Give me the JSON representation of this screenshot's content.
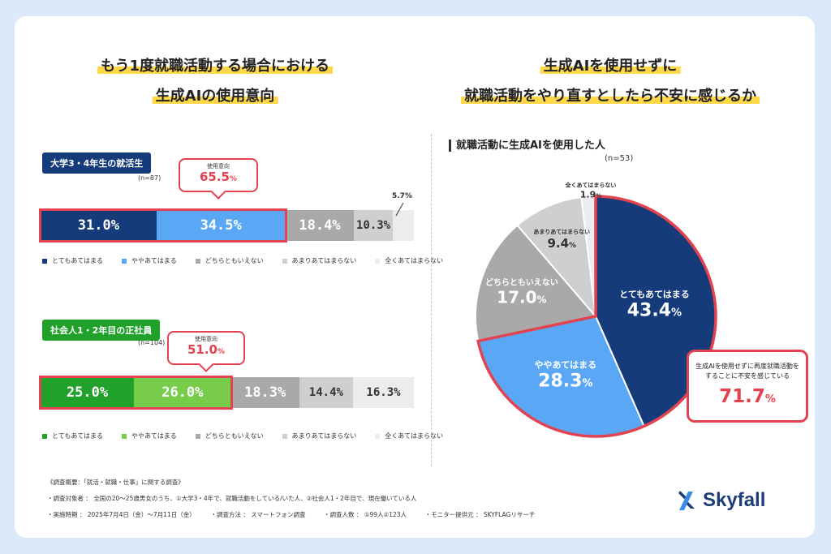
{
  "left_title": {
    "line1": "もう1度就職活動する場合における",
    "line2": "生成AIの使用意向"
  },
  "right_title": {
    "line1": "生成AIを使用せずに",
    "line2": "就職活動をやり直すとしたら不安に感じるか"
  },
  "colors": {
    "navy": "#153b7a",
    "blue": "#5aa8f5",
    "gray_mid": "#a9a9a9",
    "gray_light": "#cfcfcf",
    "gray_pale": "#ececec",
    "green_dark": "#1fa12a",
    "green_light": "#77cc4a",
    "accent_red": "#e34250",
    "bg": "#dce9fb"
  },
  "legend_labels": [
    "とてもあてはまる",
    "ややあてはまる",
    "どちらともいえない",
    "あまりあてはまらない",
    "全くあてはまらない"
  ],
  "chart_data": [
    {
      "type": "bar",
      "group": "大学3・4年生の就活生",
      "n": "(n=87)",
      "categories": [
        "とてもあてはまる",
        "ややあてはまる",
        "どちらともいえない",
        "あまりあてはまらない",
        "全くあてはまらない"
      ],
      "values": [
        31.0,
        34.5,
        18.4,
        10.3,
        5.7
      ],
      "labels": [
        "31.0%",
        "34.5%",
        "18.4%",
        "10.3%",
        "5.7%"
      ],
      "callout": {
        "caption": "使用意向",
        "value": "65.5",
        "unit": "%"
      }
    },
    {
      "type": "bar",
      "group": "社会人1・2年目の正社員",
      "n": "(n=104)",
      "categories": [
        "とてもあてはまる",
        "ややあてはまる",
        "どちらともいえない",
        "あまりあてはまらない",
        "全くあてはまらない"
      ],
      "values": [
        25.0,
        26.0,
        18.3,
        14.4,
        16.3
      ],
      "labels": [
        "25.0%",
        "26.0%",
        "18.3%",
        "14.4%",
        "16.3%"
      ],
      "callout": {
        "caption": "使用意向",
        "value": "51.0",
        "unit": "%"
      }
    },
    {
      "type": "pie",
      "subtitle": "就職活動に生成AIを使用した人",
      "n": "(n=53)",
      "categories": [
        "とてもあてはまる",
        "ややあてはまる",
        "どちらともいえない",
        "あまりあてはまらない",
        "全くあてはまらない"
      ],
      "values": [
        43.4,
        28.3,
        17.0,
        9.4,
        1.9
      ],
      "callout": {
        "caption_line1": "生成AIを使用せずに再度就職活動を",
        "caption_line2": "することに不安を感じている",
        "value": "71.7",
        "unit": "%"
      }
    }
  ],
  "footer": {
    "line1": "《調査概要：「就活・就職・仕事」に関する調査》",
    "line2": "・調査対象者 ： 全国の20〜25歳男女のうち、①大学3・4年で、就職活動をしている/いた人、②社会人1・2年目で、現在働いている人",
    "line3": "・実施時期 ： 2025年7月4日（金）〜7月11日（金）　　　・調査方法 ： スマートフォン調査　　　・調査人数 ： ①99人②123人　　　・モニター提供元 ： SKYFLAGリサーチ"
  },
  "logo": {
    "text": "Skyfall"
  }
}
